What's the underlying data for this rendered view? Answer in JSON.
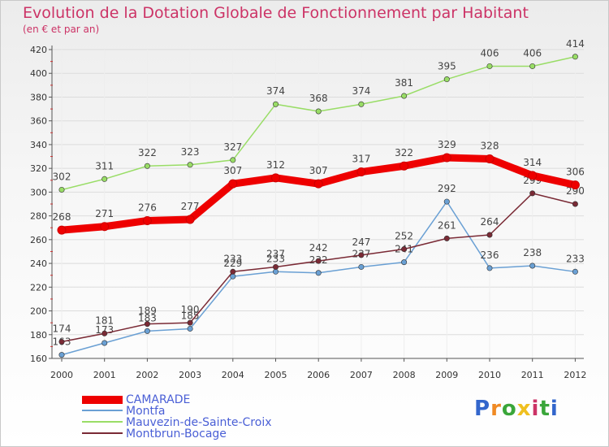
{
  "chart_data": {
    "type": "line",
    "title": "Evolution de la Dotation Globale de Fonctionnement par Habitant",
    "subtitle": "(en € et par an)",
    "x": [
      "2000",
      "2001",
      "2002",
      "2003",
      "2004",
      "2005",
      "2006",
      "2007",
      "2008",
      "2009",
      "2010",
      "2011",
      "2012"
    ],
    "yticks": [
      160,
      180,
      200,
      220,
      240,
      260,
      280,
      300,
      320,
      340,
      360,
      380,
      400,
      420
    ],
    "ylim": [
      160,
      420
    ],
    "series": [
      {
        "name": "Montfa",
        "color": "#6aa0d4",
        "values": [
          163,
          173,
          183,
          185,
          229,
          233,
          232,
          237,
          241,
          292,
          236,
          238,
          233
        ]
      },
      {
        "name": "Montbrun-Bocage",
        "color": "#7a2a35",
        "values": [
          174,
          181,
          189,
          190,
          233,
          237,
          242,
          247,
          252,
          261,
          264,
          299,
          290
        ]
      },
      {
        "name": "Mauvezin-de-Sainte-Croix",
        "color": "#99dd66",
        "values": [
          302,
          311,
          322,
          323,
          327,
          374,
          368,
          374,
          381,
          395,
          406,
          406,
          414
        ]
      },
      {
        "name": "CAMARADE",
        "color": "#ee0000",
        "values": [
          268,
          271,
          276,
          277,
          307,
          312,
          307,
          317,
          322,
          329,
          328,
          314,
          306
        ]
      }
    ],
    "legend": [
      "CAMARADE",
      "Montfa",
      "Mauvezin-de-Sainte-Croix",
      "Montbrun-Bocage"
    ]
  },
  "logo": {
    "letters": [
      "P",
      "r",
      "o",
      "x",
      "i",
      "t",
      "i"
    ],
    "colors": [
      "#3366cc",
      "#f08a24",
      "#3aa63a",
      "#f0c020",
      "#cc3366",
      "#3aa63a",
      "#3366cc"
    ]
  }
}
